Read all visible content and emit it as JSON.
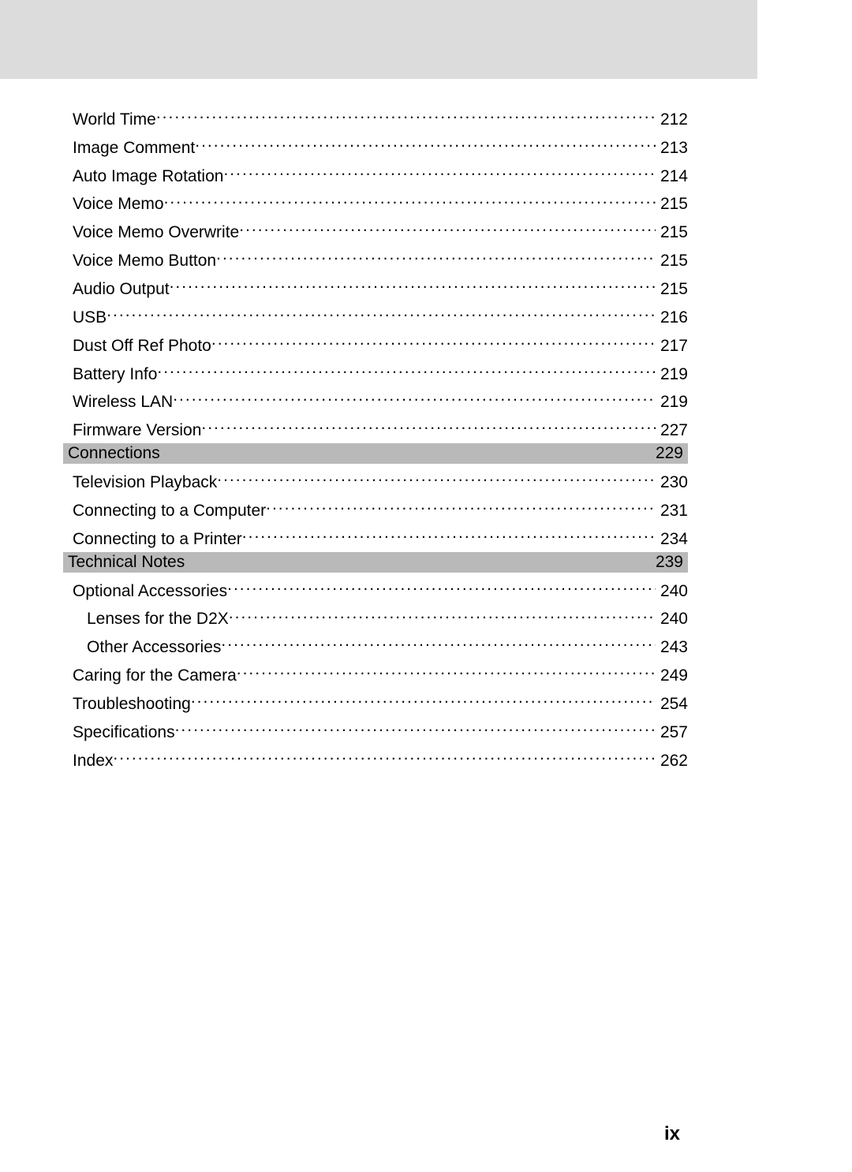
{
  "header_bg": "#dcdcdc",
  "section_bg": "#b9b9b9",
  "text_color": "#000000",
  "page_number": "ix",
  "groups": [
    {
      "type": "items",
      "entries": [
        {
          "label": "World Time",
          "page": "212",
          "indent": 1
        },
        {
          "label": "Image Comment",
          "page": "213",
          "indent": 1
        },
        {
          "label": "Auto Image Rotation",
          "page": "214",
          "indent": 1
        },
        {
          "label": "Voice Memo",
          "page": "215",
          "indent": 1
        },
        {
          "label": "Voice Memo Overwrite",
          "page": "215",
          "indent": 1
        },
        {
          "label": "Voice Memo Button",
          "page": "215",
          "indent": 1
        },
        {
          "label": "Audio Output",
          "page": "215",
          "indent": 1
        },
        {
          "label": "USB",
          "page": "216",
          "indent": 1
        },
        {
          "label": "Dust Off Ref Photo",
          "page": "217",
          "indent": 1
        },
        {
          "label": "Battery Info",
          "page": "219",
          "indent": 1
        },
        {
          "label": "Wireless LAN",
          "page": "219",
          "indent": 1
        },
        {
          "label": "Firmware Version",
          "page": "227",
          "indent": 1
        }
      ]
    },
    {
      "type": "section",
      "title": "Connections",
      "page": "229"
    },
    {
      "type": "items",
      "entries": [
        {
          "label": "Television Playback",
          "page": "230",
          "indent": 1
        },
        {
          "label": "Connecting to a Computer",
          "page": "231",
          "indent": 1
        },
        {
          "label": "Connecting to a Printer",
          "page": "234",
          "indent": 1
        }
      ]
    },
    {
      "type": "section",
      "title": "Technical Notes",
      "page": "239"
    },
    {
      "type": "items",
      "entries": [
        {
          "label": "Optional Accessories",
          "page": "240",
          "indent": 1
        },
        {
          "label": "Lenses for the D2X",
          "page": "240",
          "indent": 2
        },
        {
          "label": "Other Accessories",
          "page": "243",
          "indent": 2
        },
        {
          "label": "Caring for the Camera",
          "page": "249",
          "indent": 1
        },
        {
          "label": "Troubleshooting",
          "page": "254",
          "indent": 1
        },
        {
          "label": "Speciﬁcations",
          "page": "257",
          "indent": 1
        },
        {
          "label": "Index",
          "page": "262",
          "indent": 1
        }
      ]
    }
  ]
}
